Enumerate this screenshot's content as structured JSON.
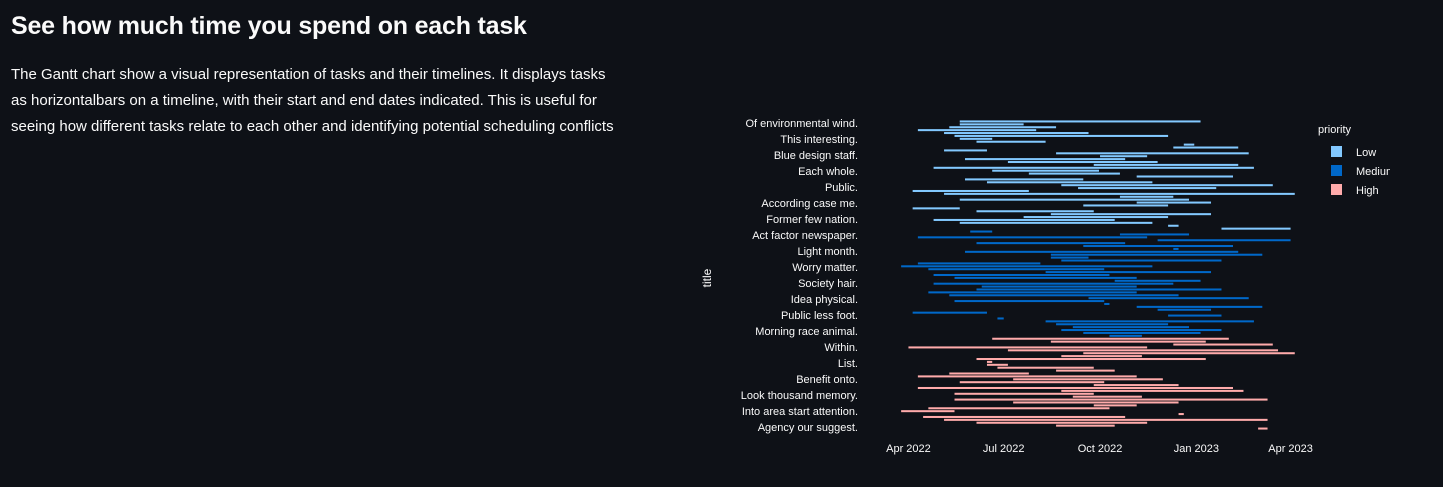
{
  "page": {
    "heading": "See how much time you spend on each task",
    "description": "The Gantt chart show a visual representation of tasks and their timelines. It displays tasks as horizontalbars on a timeline, with their start and end dates indicated. This is useful for seeing how different tasks relate to each other and identifying potential scheduling conflicts"
  },
  "chart_data": {
    "type": "gantt",
    "ylabel": "title",
    "legend_title": "priority",
    "legend_position": "top-right",
    "xlim": [
      "2022-03-01",
      "2023-04-10"
    ],
    "x_ticks": [
      "2022-04-01",
      "2022-07-01",
      "2022-10-01",
      "2023-01-01",
      "2023-04-01"
    ],
    "x_tick_labels": [
      "Apr 2022",
      "Jul 2022",
      "Oct 2022",
      "Jan 2023",
      "Apr 2023"
    ],
    "task_labels": [
      "Of environmental wind.",
      "This interesting.",
      "Blue design staff.",
      "Each whole.",
      "Public.",
      "According case me.",
      "Former few nation.",
      "Act factor newspaper.",
      "Light month.",
      "Worry matter.",
      "Society hair.",
      "Idea physical.",
      "Public less foot.",
      "Morning race animal.",
      "Within.",
      "List.",
      "Benefit onto.",
      "Look thousand memory.",
      "Into area start attention.",
      "Agency our suggest."
    ],
    "series": [
      {
        "name": "Low",
        "color": "#83c9ff",
        "tasks": [
          {
            "start": "2022-05-20",
            "end": "2023-01-05"
          },
          {
            "start": "2022-05-20",
            "end": "2022-07-20"
          },
          {
            "start": "2022-05-10",
            "end": "2022-08-20"
          },
          {
            "start": "2022-04-10",
            "end": "2022-08-01"
          },
          {
            "start": "2022-05-05",
            "end": "2022-09-20"
          },
          {
            "start": "2022-05-15",
            "end": "2022-12-05"
          },
          {
            "start": "2022-05-20",
            "end": "2022-06-20"
          },
          {
            "start": "2022-06-05",
            "end": "2022-08-10"
          },
          {
            "start": "2022-12-20",
            "end": "2022-12-30"
          },
          {
            "start": "2022-12-10",
            "end": "2023-02-10"
          },
          {
            "start": "2022-05-05",
            "end": "2022-06-15"
          },
          {
            "start": "2022-08-20",
            "end": "2023-02-20"
          },
          {
            "start": "2022-10-01",
            "end": "2022-11-15"
          },
          {
            "start": "2022-05-25",
            "end": "2022-10-25"
          },
          {
            "start": "2022-07-05",
            "end": "2022-11-25"
          },
          {
            "start": "2022-09-25",
            "end": "2023-02-10"
          },
          {
            "start": "2022-04-25",
            "end": "2023-02-25"
          },
          {
            "start": "2022-06-20",
            "end": "2022-09-30"
          },
          {
            "start": "2022-07-25",
            "end": "2022-10-20"
          },
          {
            "start": "2022-11-05",
            "end": "2023-02-05"
          },
          {
            "start": "2022-05-25",
            "end": "2022-09-15"
          },
          {
            "start": "2022-06-15",
            "end": "2022-11-20"
          },
          {
            "start": "2022-08-25",
            "end": "2023-03-15"
          },
          {
            "start": "2022-09-10",
            "end": "2023-01-20"
          },
          {
            "start": "2022-04-05",
            "end": "2022-07-25"
          },
          {
            "start": "2022-05-05",
            "end": "2023-04-05"
          },
          {
            "start": "2022-10-20",
            "end": "2022-12-10"
          },
          {
            "start": "2022-05-20",
            "end": "2022-12-25"
          },
          {
            "start": "2022-11-05",
            "end": "2023-01-15"
          },
          {
            "start": "2022-09-15",
            "end": "2022-12-05"
          },
          {
            "start": "2022-04-05",
            "end": "2022-05-20"
          },
          {
            "start": "2022-06-05",
            "end": "2022-09-25"
          },
          {
            "start": "2022-08-15",
            "end": "2023-01-15"
          },
          {
            "start": "2022-07-20",
            "end": "2022-12-05"
          },
          {
            "start": "2022-04-25",
            "end": "2022-10-15"
          },
          {
            "start": "2022-05-20",
            "end": "2022-11-20"
          },
          {
            "start": "2022-12-05",
            "end": "2022-12-15"
          },
          {
            "start": "2023-01-25",
            "end": "2023-04-01"
          }
        ]
      },
      {
        "name": "Medium",
        "color": "#0068c9",
        "tasks": [
          {
            "start": "2022-05-30",
            "end": "2022-06-20"
          },
          {
            "start": "2022-10-20",
            "end": "2022-12-25"
          },
          {
            "start": "2022-04-10",
            "end": "2022-11-15"
          },
          {
            "start": "2022-11-25",
            "end": "2023-04-01"
          },
          {
            "start": "2022-06-05",
            "end": "2022-10-25"
          },
          {
            "start": "2022-09-15",
            "end": "2023-02-05"
          },
          {
            "start": "2022-12-10",
            "end": "2022-12-15"
          },
          {
            "start": "2022-05-25",
            "end": "2023-02-10"
          },
          {
            "start": "2022-08-15",
            "end": "2023-03-05"
          },
          {
            "start": "2022-08-15",
            "end": "2022-09-20"
          },
          {
            "start": "2022-08-25",
            "end": "2023-01-25"
          },
          {
            "start": "2022-04-10",
            "end": "2022-08-05"
          },
          {
            "start": "2022-03-25",
            "end": "2022-11-20"
          },
          {
            "start": "2022-04-20",
            "end": "2022-10-05"
          },
          {
            "start": "2022-08-10",
            "end": "2023-01-15"
          },
          {
            "start": "2022-04-25",
            "end": "2022-10-10"
          },
          {
            "start": "2022-05-15",
            "end": "2022-11-05"
          },
          {
            "start": "2022-10-15",
            "end": "2023-01-05"
          },
          {
            "start": "2022-04-25",
            "end": "2022-12-10"
          },
          {
            "start": "2022-06-10",
            "end": "2022-11-05"
          },
          {
            "start": "2022-06-05",
            "end": "2023-01-25"
          },
          {
            "start": "2022-04-20",
            "end": "2022-11-05"
          },
          {
            "start": "2022-05-10",
            "end": "2022-12-15"
          },
          {
            "start": "2022-09-20",
            "end": "2023-02-20"
          },
          {
            "start": "2022-05-15",
            "end": "2022-10-05"
          },
          {
            "start": "2022-10-05",
            "end": "2022-10-10"
          },
          {
            "start": "2022-11-05",
            "end": "2023-03-05"
          },
          {
            "start": "2022-11-25",
            "end": "2023-01-15"
          },
          {
            "start": "2022-04-05",
            "end": "2022-06-15"
          },
          {
            "start": "2022-12-05",
            "end": "2023-01-25"
          },
          {
            "start": "2022-06-25",
            "end": "2022-07-01"
          },
          {
            "start": "2022-08-10",
            "end": "2023-02-25"
          },
          {
            "start": "2022-08-20",
            "end": "2022-12-05"
          },
          {
            "start": "2022-09-05",
            "end": "2022-12-25"
          },
          {
            "start": "2022-08-25",
            "end": "2023-01-25"
          },
          {
            "start": "2022-09-15",
            "end": "2023-01-05"
          },
          {
            "start": "2022-10-10",
            "end": "2022-11-10"
          }
        ]
      },
      {
        "name": "High",
        "color": "#ffabab",
        "tasks": [
          {
            "start": "2022-06-20",
            "end": "2023-02-01"
          },
          {
            "start": "2022-08-15",
            "end": "2023-01-10"
          },
          {
            "start": "2022-12-10",
            "end": "2023-03-15"
          },
          {
            "start": "2022-04-01",
            "end": "2022-11-15"
          },
          {
            "start": "2022-07-05",
            "end": "2023-03-20"
          },
          {
            "start": "2022-09-15",
            "end": "2023-04-05"
          },
          {
            "start": "2022-08-25",
            "end": "2022-11-10"
          },
          {
            "start": "2022-06-05",
            "end": "2023-01-10"
          },
          {
            "start": "2022-06-15",
            "end": "2022-06-20"
          },
          {
            "start": "2022-06-15",
            "end": "2022-07-05"
          },
          {
            "start": "2022-06-25",
            "end": "2022-09-25"
          },
          {
            "start": "2022-08-20",
            "end": "2022-10-15"
          },
          {
            "start": "2022-05-10",
            "end": "2022-07-25"
          },
          {
            "start": "2022-04-10",
            "end": "2022-11-05"
          },
          {
            "start": "2022-07-10",
            "end": "2022-11-30"
          },
          {
            "start": "2022-05-20",
            "end": "2022-10-05"
          },
          {
            "start": "2022-09-25",
            "end": "2022-12-15"
          },
          {
            "start": "2022-04-10",
            "end": "2023-02-05"
          },
          {
            "start": "2022-08-25",
            "end": "2023-02-15"
          },
          {
            "start": "2022-05-15",
            "end": "2022-09-25"
          },
          {
            "start": "2022-09-05",
            "end": "2022-11-10"
          },
          {
            "start": "2022-05-15",
            "end": "2023-03-10"
          },
          {
            "start": "2022-07-10",
            "end": "2022-12-15"
          },
          {
            "start": "2022-09-25",
            "end": "2022-11-05"
          },
          {
            "start": "2022-04-20",
            "end": "2022-10-10"
          },
          {
            "start": "2022-03-25",
            "end": "2022-05-15"
          },
          {
            "start": "2022-12-15",
            "end": "2022-12-20"
          },
          {
            "start": "2022-04-15",
            "end": "2022-10-25"
          },
          {
            "start": "2022-05-05",
            "end": "2023-03-10"
          },
          {
            "start": "2022-06-05",
            "end": "2022-11-15"
          },
          {
            "start": "2022-08-20",
            "end": "2022-10-15"
          },
          {
            "start": "2023-03-01",
            "end": "2023-03-10"
          }
        ]
      }
    ]
  }
}
